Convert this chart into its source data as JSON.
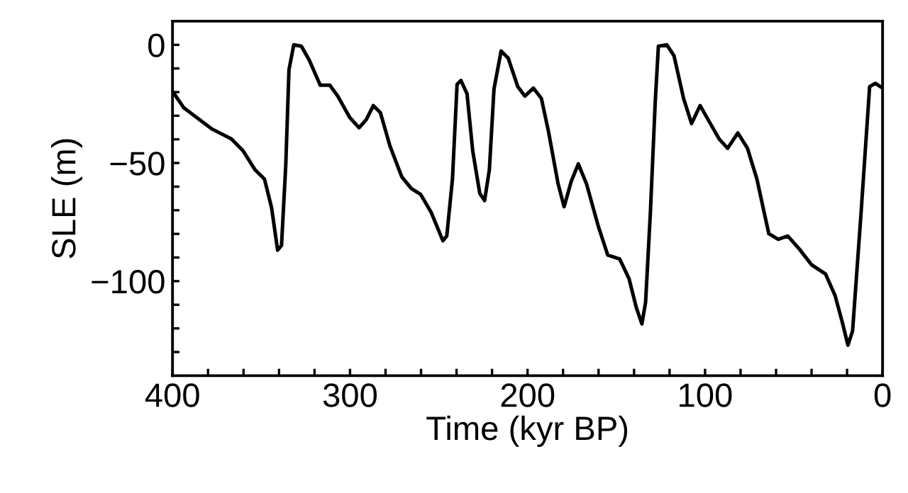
{
  "chart_data": {
    "type": "line",
    "xlabel": "Time (kyr BP)",
    "ylabel": "SLE (m)",
    "xlim": [
      400,
      0
    ],
    "ylim": [
      -140,
      10
    ],
    "xticks": [
      400,
      {
        "value": 380,
        "label": null
      },
      {
        "value": 360,
        "label": null
      },
      {
        "value": 340,
        "label": null
      },
      {
        "value": 320,
        "label": null
      },
      300,
      {
        "value": 280,
        "label": null
      },
      {
        "value": 260,
        "label": null
      },
      {
        "value": 240,
        "label": null
      },
      {
        "value": 220,
        "label": null
      },
      200,
      {
        "value": 180,
        "label": null
      },
      {
        "value": 160,
        "label": null
      },
      {
        "value": 140,
        "label": null
      },
      {
        "value": 120,
        "label": null
      },
      100,
      {
        "value": 80,
        "label": null
      },
      {
        "value": 60,
        "label": null
      },
      {
        "value": 40,
        "label": null
      },
      {
        "value": 20,
        "label": null
      },
      0
    ],
    "yticks": [
      {
        "value": -130,
        "label": null
      },
      {
        "value": -120,
        "label": null
      },
      {
        "value": -110,
        "label": null
      },
      {
        "value": -100,
        "label": "−100"
      },
      {
        "value": -90,
        "label": null
      },
      {
        "value": -80,
        "label": null
      },
      {
        "value": -70,
        "label": null
      },
      {
        "value": -60,
        "label": null
      },
      {
        "value": -50,
        "label": "−50"
      },
      {
        "value": -40,
        "label": null
      },
      {
        "value": -30,
        "label": null
      },
      {
        "value": -20,
        "label": null
      },
      {
        "value": -10,
        "label": null
      },
      0
    ],
    "grid": false,
    "legend": false,
    "marker": "none",
    "line_style": "solid",
    "series": [
      {
        "color": "#000000",
        "x": [
          400,
          393.6,
          377.6,
          366.9,
          360.3,
          353.6,
          348.2,
          344.2,
          340.8,
          338.6,
          336.2,
          334.4,
          331.7,
          327.4,
          322.9,
          316.8,
          311.4,
          306.9,
          300.2,
          294.9,
          290.9,
          286.9,
          282.9,
          277.5,
          270.9,
          265.5,
          260.2,
          254.3,
          247.7,
          245.5,
          242.3,
          239.7,
          237.5,
          234.1,
          230.9,
          226.9,
          224.2,
          221.5,
          218.9,
          214.9,
          210.9,
          205.5,
          201.5,
          196.7,
          192.2,
          188.2,
          182.8,
          179.4,
          175.4,
          171.4,
          166.8,
          160.1,
          154.8,
          148.1,
          142.8,
          138.8,
          135.6,
          133.5,
          130.8,
          128.1,
          126.3,
          121.5,
          117.5,
          112.1,
          107.6,
          102.8,
          97.5,
          92.1,
          87.3,
          81.5,
          76.1,
          70.8,
          64.1,
          58.8,
          53.4,
          46.8,
          40.1,
          32.1,
          26.8,
          22.8,
          19.5,
          16.9,
          12.1,
          7.3,
          4.1,
          0
        ],
        "values": [
          -19.7,
          -26.7,
          -35.7,
          -39.8,
          -44.8,
          -52.8,
          -56.8,
          -68.9,
          -86.9,
          -84.9,
          -50.8,
          -10.6,
          0,
          -0.6,
          -6.6,
          -17.1,
          -17.1,
          -21.7,
          -30.7,
          -35.1,
          -31.7,
          -25.7,
          -28.7,
          -42.8,
          -55.8,
          -60.8,
          -63.3,
          -70.9,
          -82.9,
          -80.9,
          -56.8,
          -16.7,
          -15.1,
          -20.7,
          -44.8,
          -62.9,
          -65.9,
          -52.8,
          -18.7,
          -2.6,
          -5.6,
          -17.7,
          -21.7,
          -18.3,
          -22.7,
          -36.7,
          -58.8,
          -68.5,
          -57.8,
          -50.4,
          -58.8,
          -76.9,
          -89.0,
          -90.6,
          -99.0,
          -111.0,
          -118.1,
          -109.0,
          -70.9,
          -24.7,
          -0.6,
          0,
          -4.6,
          -22.7,
          -33.3,
          -25.7,
          -32.7,
          -39.8,
          -43.8,
          -37.3,
          -43.8,
          -56.8,
          -79.9,
          -82.3,
          -80.9,
          -86.5,
          -93.0,
          -97.0,
          -106.0,
          -117.1,
          -127.1,
          -121.1,
          -70.9,
          -17.7,
          -16.3,
          -18.3
        ]
      }
    ]
  }
}
